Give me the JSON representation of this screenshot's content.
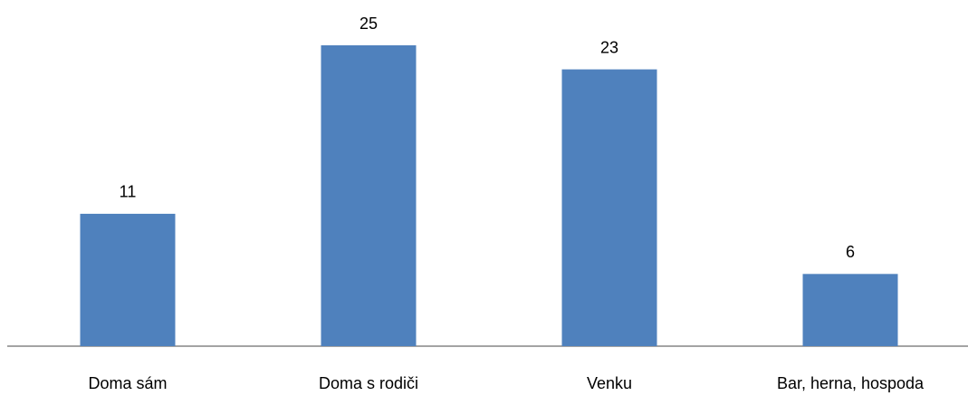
{
  "chart_data": {
    "type": "bar",
    "categories": [
      "Doma sám",
      "Doma s rodiči",
      "Venku",
      "Bar, herna, hospoda"
    ],
    "values": [
      11,
      25,
      23,
      6
    ],
    "color": "#4f81bd"
  }
}
